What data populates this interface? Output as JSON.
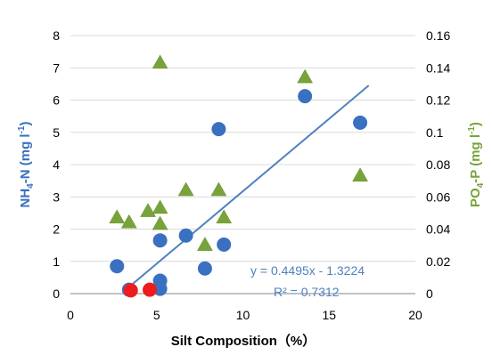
{
  "colors": {
    "nh4": "#3a70c0",
    "po4": "#77a33a",
    "highlight": "#ee1c1c",
    "trendline": "#4f81bd",
    "grid": "#d9d9d9",
    "axis": "#868686"
  },
  "chart_data": {
    "type": "scatter",
    "title": "",
    "xlabel": "Silt Composition（%）",
    "ylabel_left": {
      "main": "NH",
      "sub": "4",
      "rest": "-N (mg l",
      "sup": "-1",
      "end": ")"
    },
    "ylabel_right": {
      "main": "PO",
      "sub": "4",
      "rest": "-P (mg l",
      "sup": "-1",
      "end": ")"
    },
    "xlim": [
      0,
      20
    ],
    "ylim_left": [
      0,
      8
    ],
    "ylim_right": [
      0,
      0.16
    ],
    "x_ticks": [
      "0",
      "5",
      "10",
      "15",
      "20"
    ],
    "y_ticks_left": [
      "0",
      "1",
      "2",
      "3",
      "4",
      "5",
      "6",
      "7",
      "8"
    ],
    "y_ticks_right": [
      "0",
      "0.02",
      "0.04",
      "0.06",
      "0.08",
      "0.1",
      "0.12",
      "0.14",
      "0.16"
    ],
    "grid": "horizontal",
    "series": [
      {
        "key": "nh4",
        "marker": "circle",
        "axis": "left",
        "points": [
          [
            2.7,
            0.85
          ],
          [
            3.4,
            0.12
          ],
          [
            5.2,
            1.65
          ],
          [
            5.2,
            0.4
          ],
          [
            5.2,
            0.15
          ],
          [
            6.7,
            1.8
          ],
          [
            7.8,
            0.78
          ],
          [
            8.6,
            5.1
          ],
          [
            8.9,
            1.52
          ],
          [
            13.6,
            6.12
          ],
          [
            16.8,
            5.3
          ]
        ]
      },
      {
        "key": "po4",
        "marker": "triangle",
        "axis": "right",
        "points": [
          [
            2.7,
            0.047
          ],
          [
            3.4,
            0.044
          ],
          [
            4.5,
            0.051
          ],
          [
            5.2,
            0.053
          ],
          [
            5.2,
            0.043
          ],
          [
            5.2,
            0.143
          ],
          [
            6.7,
            0.064
          ],
          [
            7.8,
            0.03
          ],
          [
            8.6,
            0.064
          ],
          [
            8.9,
            0.047
          ],
          [
            13.6,
            0.134
          ],
          [
            16.8,
            0.073
          ]
        ]
      },
      {
        "key": "highlight",
        "marker": "circle",
        "axis": "left",
        "points": [
          [
            3.5,
            0.1
          ],
          [
            4.6,
            0.12
          ]
        ]
      }
    ],
    "trendline": {
      "x_range": [
        3.3,
        17.3
      ],
      "slope": 0.4495,
      "intercept": -1.3224
    },
    "annotations": {
      "equation": "y = 0.4495x - 1.3224",
      "r_squared": "R² = 0.7312"
    }
  }
}
